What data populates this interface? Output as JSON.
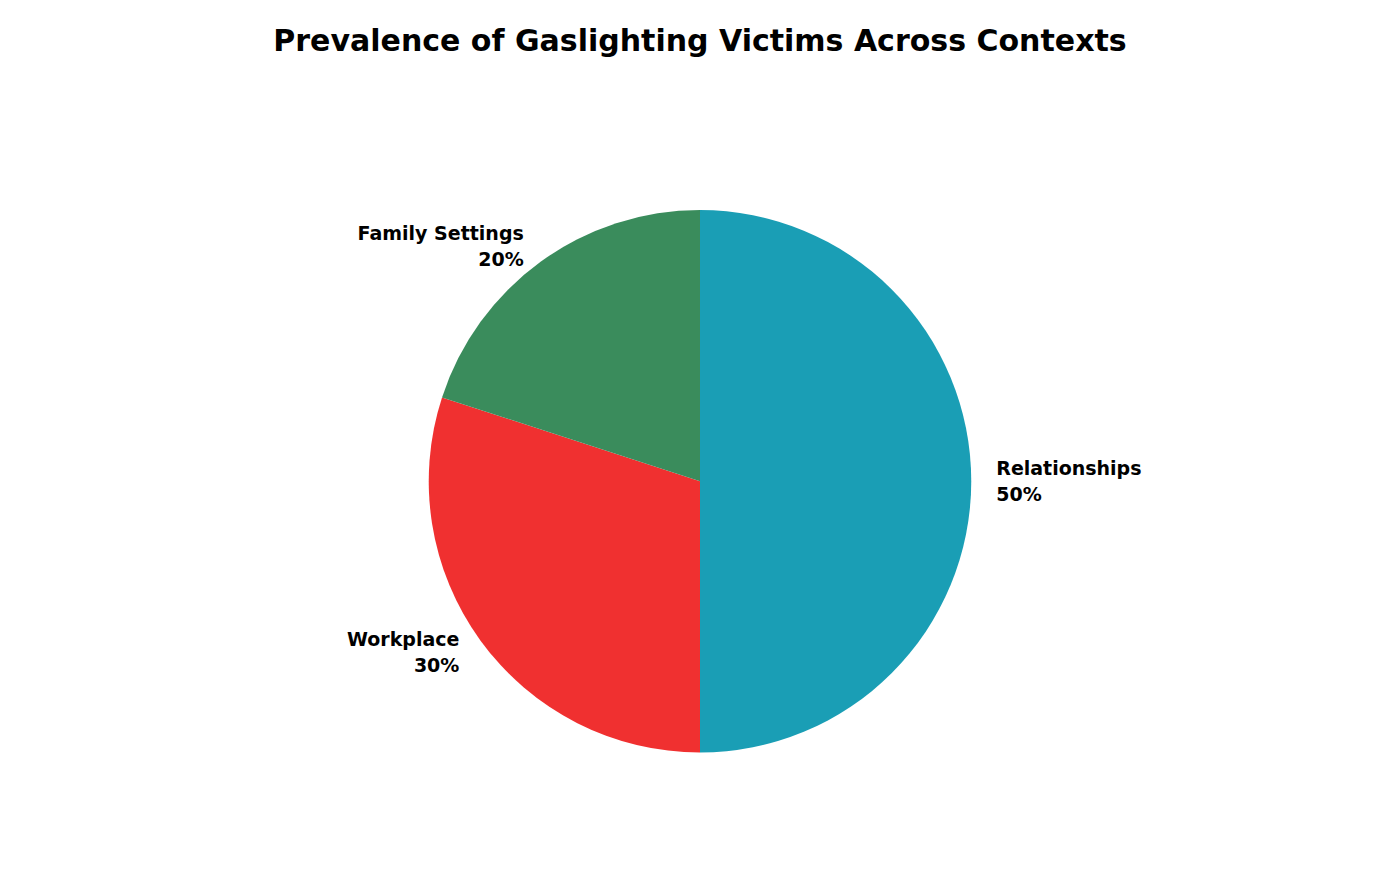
{
  "chart_data": {
    "type": "pie",
    "title": "Prevalence of Gaslighting Victims Across Contexts",
    "categories": [
      "Relationships",
      "Workplace",
      "Family Settings"
    ],
    "values": [
      50,
      30,
      20
    ],
    "value_labels": [
      "50%",
      "30%",
      "20%"
    ],
    "colors": [
      "#1a9eb5",
      "#f03030",
      "#3a8c5c"
    ],
    "data_labels": true
  }
}
